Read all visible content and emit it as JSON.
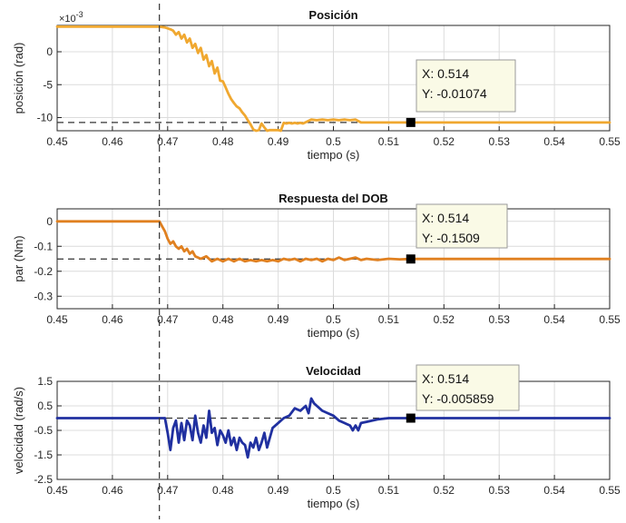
{
  "chart_data": [
    {
      "type": "line",
      "title": "Posición",
      "xlabel": "tiempo (s)",
      "ylabel": "posición (rad)",
      "y_exponent_label": "×10",
      "y_exponent_power": "-3",
      "xlim": [
        0.45,
        0.55
      ],
      "ylim": [
        -12,
        4
      ],
      "x_ticks": [
        0.45,
        0.46,
        0.47,
        0.48,
        0.49,
        0.5,
        0.51,
        0.52,
        0.53,
        0.54,
        0.55
      ],
      "x_tick_labels": [
        "0.45",
        "0.46",
        "0.47",
        "0.48",
        "0.49",
        "0.5",
        "0.51",
        "0.52",
        "0.53",
        "0.54",
        "0.55"
      ],
      "y_ticks": [
        0,
        -5,
        -10
      ],
      "y_tick_labels": [
        "0",
        "-5",
        "-10"
      ],
      "grid": true,
      "color": "#f0a830",
      "series": [
        {
          "x": [
            0.45,
            0.4685,
            0.4695,
            0.4705,
            0.471,
            0.4715,
            0.472,
            0.4725,
            0.473,
            0.4735,
            0.474,
            0.4745,
            0.475,
            0.4755,
            0.476,
            0.4765,
            0.477,
            0.4775,
            0.478,
            0.4785,
            0.479,
            0.4795,
            0.48,
            0.4805,
            0.481,
            0.4815,
            0.482,
            0.4825,
            0.483,
            0.4835,
            0.484,
            0.4845,
            0.485,
            0.4855,
            0.486,
            0.4865,
            0.487,
            0.4875,
            0.488,
            0.4885,
            0.489,
            0.4895,
            0.49,
            0.4905,
            0.491,
            0.4915,
            0.492,
            0.4925,
            0.493,
            0.4935,
            0.494,
            0.4945,
            0.495,
            0.496,
            0.497,
            0.498,
            0.499,
            0.5,
            0.501,
            0.502,
            0.503,
            0.504,
            0.505,
            0.508,
            0.512,
            0.514,
            0.52,
            0.53,
            0.54,
            0.55
          ],
          "y": [
            3.8,
            3.8,
            3.7,
            3.4,
            3.2,
            2.6,
            3.0,
            2.0,
            2.6,
            1.4,
            2.0,
            0.6,
            1.2,
            -0.2,
            0.6,
            -1.2,
            -0.5,
            -2.2,
            -1.4,
            -3.3,
            -2.4,
            -4.4,
            -4.5,
            -5.4,
            -6.4,
            -7.2,
            -7.8,
            -8.3,
            -8.6,
            -9.2,
            -9.7,
            -10.4,
            -11.0,
            -11.8,
            -12.0,
            -11.9,
            -10.9,
            -11.5,
            -12.0,
            -11.9,
            -11.9,
            -11.9,
            -11.9,
            -12.0,
            -10.8,
            -10.9,
            -10.8,
            -10.9,
            -10.8,
            -10.9,
            -10.8,
            -10.9,
            -10.7,
            -10.3,
            -10.4,
            -10.3,
            -10.4,
            -10.3,
            -10.4,
            -10.3,
            -10.4,
            -10.3,
            -10.74,
            -10.74,
            -10.74,
            -10.74,
            -10.74,
            -10.74,
            -10.74,
            -10.74
          ]
        }
      ],
      "reference_line_y": -10.74,
      "vertical_line_x": 0.4685,
      "datatip": {
        "x": 0.514,
        "y": -10.74,
        "label_x": "X: 0.514",
        "label_y": "Y: -0.01074"
      }
    },
    {
      "type": "line",
      "title": "Respuesta del DOB",
      "xlabel": "tiempo (s)",
      "ylabel": "par (Nm)",
      "xlim": [
        0.45,
        0.55
      ],
      "ylim": [
        -0.35,
        0.05
      ],
      "x_ticks": [
        0.45,
        0.46,
        0.47,
        0.48,
        0.49,
        0.5,
        0.51,
        0.52,
        0.53,
        0.54,
        0.55
      ],
      "x_tick_labels": [
        "0.45",
        "0.46",
        "0.47",
        "0.48",
        "0.49",
        "0.5",
        "0.51",
        "0.52",
        "0.53",
        "0.54",
        "0.55"
      ],
      "y_ticks": [
        0,
        -0.1,
        -0.2,
        -0.3
      ],
      "y_tick_labels": [
        "0",
        "-0.1",
        "-0.2",
        "-0.3"
      ],
      "grid": true,
      "color": "#e08020",
      "series": [
        {
          "x": [
            0.45,
            0.4685,
            0.469,
            0.4695,
            0.47,
            0.4705,
            0.471,
            0.4715,
            0.472,
            0.4725,
            0.473,
            0.4735,
            0.474,
            0.4745,
            0.475,
            0.476,
            0.477,
            0.478,
            0.479,
            0.48,
            0.481,
            0.482,
            0.483,
            0.484,
            0.485,
            0.486,
            0.487,
            0.488,
            0.489,
            0.49,
            0.491,
            0.492,
            0.493,
            0.494,
            0.495,
            0.496,
            0.497,
            0.498,
            0.499,
            0.5,
            0.501,
            0.502,
            0.503,
            0.504,
            0.505,
            0.506,
            0.508,
            0.51,
            0.512,
            0.514,
            0.52,
            0.53,
            0.54,
            0.55
          ],
          "y": [
            0,
            0,
            -0.02,
            -0.04,
            -0.07,
            -0.09,
            -0.08,
            -0.1,
            -0.11,
            -0.1,
            -0.12,
            -0.11,
            -0.13,
            -0.12,
            -0.14,
            -0.15,
            -0.14,
            -0.16,
            -0.15,
            -0.16,
            -0.15,
            -0.16,
            -0.15,
            -0.16,
            -0.155,
            -0.16,
            -0.155,
            -0.16,
            -0.155,
            -0.16,
            -0.15,
            -0.155,
            -0.15,
            -0.16,
            -0.15,
            -0.155,
            -0.15,
            -0.16,
            -0.15,
            -0.155,
            -0.145,
            -0.155,
            -0.15,
            -0.145,
            -0.155,
            -0.15,
            -0.155,
            -0.15,
            -0.152,
            -0.1509,
            -0.1509,
            -0.1509,
            -0.1509,
            -0.1509
          ]
        }
      ],
      "reference_line_y": -0.1509,
      "vertical_line_x": 0.4685,
      "datatip": {
        "x": 0.514,
        "y": -0.1509,
        "label_x": "X: 0.514",
        "label_y": "Y: -0.1509"
      }
    },
    {
      "type": "line",
      "title": "Velocidad",
      "xlabel": "tiempo (s)",
      "ylabel": "velocidad (rad/s)",
      "xlim": [
        0.45,
        0.55
      ],
      "ylim": [
        -2.5,
        1.5
      ],
      "x_ticks": [
        0.45,
        0.46,
        0.47,
        0.48,
        0.49,
        0.5,
        0.51,
        0.52,
        0.53,
        0.54,
        0.55
      ],
      "x_tick_labels": [
        "0.45",
        "0.46",
        "0.47",
        "0.48",
        "0.49",
        "0.5",
        "0.51",
        "0.52",
        "0.53",
        "0.54",
        "0.55"
      ],
      "y_ticks": [
        1.5,
        0.5,
        -0.5,
        -1.5,
        -2.5
      ],
      "y_tick_labels": [
        "1.5",
        "0.5",
        "-0.5",
        "-1.5",
        "-2.5"
      ],
      "grid": true,
      "color": "#2030a0",
      "series": [
        {
          "x": [
            0.45,
            0.4685,
            0.4695,
            0.47,
            0.4705,
            0.471,
            0.4715,
            0.472,
            0.4725,
            0.473,
            0.4735,
            0.474,
            0.4745,
            0.475,
            0.4755,
            0.476,
            0.4765,
            0.477,
            0.4775,
            0.478,
            0.4785,
            0.479,
            0.4795,
            0.48,
            0.4805,
            0.481,
            0.4815,
            0.482,
            0.4825,
            0.483,
            0.4835,
            0.484,
            0.4845,
            0.485,
            0.4855,
            0.486,
            0.4865,
            0.487,
            0.4875,
            0.488,
            0.489,
            0.49,
            0.491,
            0.492,
            0.493,
            0.494,
            0.495,
            0.4955,
            0.496,
            0.4965,
            0.497,
            0.498,
            0.499,
            0.5,
            0.501,
            0.502,
            0.503,
            0.5035,
            0.504,
            0.5045,
            0.505,
            0.506,
            0.508,
            0.51,
            0.512,
            0.514,
            0.52,
            0.53,
            0.54,
            0.55
          ],
          "y": [
            0,
            0,
            0,
            -0.6,
            -1.3,
            -0.4,
            -0.1,
            -1.0,
            -0.2,
            -0.9,
            -0.1,
            -0.3,
            -0.9,
            0.1,
            -0.6,
            -1.0,
            -0.3,
            -0.8,
            0.3,
            -0.6,
            -0.4,
            -1.1,
            -0.5,
            -0.7,
            -1.0,
            -0.5,
            -1.1,
            -0.8,
            -1.3,
            -0.8,
            -1.0,
            -1.1,
            -1.6,
            -1.0,
            -1.2,
            -0.8,
            -1.3,
            -1.0,
            -0.6,
            -1.2,
            -0.4,
            -0.2,
            0.0,
            0.1,
            0.4,
            0.3,
            0.5,
            0.2,
            0.8,
            0.6,
            0.5,
            0.3,
            0.2,
            0.1,
            -0.1,
            -0.2,
            -0.3,
            -0.5,
            -0.3,
            -0.5,
            -0.2,
            -0.15,
            -0.05,
            0,
            0,
            0,
            0,
            0,
            0,
            0
          ]
        }
      ],
      "reference_line_y": 0,
      "vertical_line_x": 0.4685,
      "datatip": {
        "x": 0.514,
        "y": 0,
        "label_x": "X: 0.514",
        "label_y": "Y: -0.005859"
      }
    }
  ]
}
